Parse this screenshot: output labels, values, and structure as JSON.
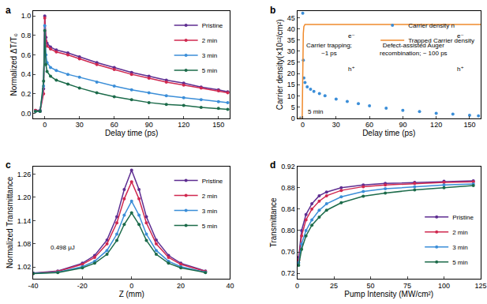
{
  "chart_data": [
    {
      "type": "scatter",
      "title": "a",
      "x_label": "Delay time (ps)",
      "y_label": "Normalized ΔT/T₀",
      "xlim": [
        -10,
        160
      ],
      "xticks": [
        0,
        30,
        60,
        90,
        120,
        150
      ],
      "ylim": [
        -0.05,
        1.05
      ],
      "yticks": [
        {
          "value": 0,
          "label": "0.0"
        },
        {
          "value": 0.2,
          "label": "0.2"
        },
        {
          "value": 0.4,
          "label": "0.4"
        },
        {
          "value": 0.6,
          "label": "0.6"
        },
        {
          "value": 0.8,
          "label": "0.8"
        },
        {
          "value": 1,
          "label": "1.0"
        }
      ],
      "legend": "top right",
      "grid": false,
      "x": [
        -8,
        -4,
        -1,
        0,
        1,
        2,
        5,
        10,
        20,
        30,
        45,
        60,
        75,
        90,
        105,
        120,
        135,
        150,
        158
      ],
      "series": [
        {
          "name": "Pristine",
          "color": "#5e2d91",
          "marker": "circle",
          "line_style": "solid",
          "values": [
            0.03,
            0.03,
            0.25,
            1.0,
            0.78,
            0.72,
            0.68,
            0.65,
            0.62,
            0.58,
            0.52,
            0.47,
            0.42,
            0.38,
            0.34,
            0.31,
            0.27,
            0.24,
            0.22
          ]
        },
        {
          "name": "2 min",
          "color": "#d0284f",
          "marker": "circle",
          "line_style": "solid",
          "values": [
            0.03,
            0.02,
            0.2,
            0.98,
            0.74,
            0.69,
            0.66,
            0.63,
            0.6,
            0.56,
            0.5,
            0.45,
            0.4,
            0.36,
            0.32,
            0.29,
            0.26,
            0.23,
            0.21
          ]
        },
        {
          "name": "3 min",
          "color": "#3b8ed8",
          "marker": "circle",
          "line_style": "solid",
          "values": [
            0.02,
            0.02,
            0.28,
            0.9,
            0.6,
            0.52,
            0.47,
            0.44,
            0.4,
            0.37,
            0.32,
            0.28,
            0.24,
            0.21,
            0.18,
            0.16,
            0.14,
            0.12,
            0.11
          ]
        },
        {
          "name": "5 min",
          "color": "#1c6b4a",
          "marker": "circle",
          "line_style": "solid",
          "values": [
            0.02,
            0.02,
            0.33,
            0.85,
            0.5,
            0.43,
            0.38,
            0.34,
            0.3,
            0.26,
            0.21,
            0.17,
            0.14,
            0.11,
            0.09,
            0.08,
            0.06,
            0.05,
            0.04
          ]
        }
      ]
    },
    {
      "type": "scatter",
      "title": "b",
      "x_label": "Delay time (ps)",
      "y_label": "Carrier density(×10¹²/cm²)",
      "xlim": [
        -5,
        160
      ],
      "xticks": [
        0,
        30,
        60,
        90,
        120,
        150
      ],
      "ylim": [
        0,
        48
      ],
      "yticks": [
        0,
        5,
        10,
        15,
        20,
        25,
        30,
        35,
        40,
        45
      ],
      "legend": "top right",
      "grid": false,
      "series": [
        {
          "name": "Carrier density n",
          "color": "#3b8ed8",
          "marker": "circle",
          "x": [
            -2,
            0,
            0.5,
            1,
            2,
            4,
            7,
            10,
            15,
            20,
            30,
            40,
            50,
            60,
            75,
            90,
            105,
            120,
            135,
            150,
            158
          ],
          "values": [
            0,
            47,
            26,
            18,
            16,
            14,
            13,
            12,
            11,
            10,
            8.5,
            7.5,
            6.5,
            5.5,
            4.5,
            3.5,
            3,
            2.2,
            1.8,
            1.3,
            1
          ]
        },
        {
          "name": "Trapped Carrier density",
          "color": "#f08a2c",
          "line_style": "solid",
          "x": [
            -5,
            -0.5,
            0.5,
            1,
            2,
            160
          ],
          "values": [
            0,
            0,
            38,
            41,
            42,
            42
          ]
        }
      ],
      "annotations": [
        {
          "text": "Carrier trapping;\n~1 ps",
          "x": 24,
          "y": 31
        },
        {
          "text": "Defect-assisted Auger\nrecombination; ~ 100 ps",
          "x": 100,
          "y": 31
        },
        {
          "text": "e⁻",
          "x": 44,
          "y": 37
        },
        {
          "text": "h⁺",
          "x": 44,
          "y": 22
        },
        {
          "text": "e⁻",
          "x": 142,
          "y": 37
        },
        {
          "text": "h⁺",
          "x": 142,
          "y": 22
        },
        {
          "text": "5 min",
          "x": 12,
          "y": 3
        }
      ]
    },
    {
      "type": "scatter",
      "title": "c",
      "x_label": "Z (mm)",
      "y_label": "Normalized Transmittance",
      "xlim": [
        -40,
        40
      ],
      "xticks": [
        -40,
        -20,
        0,
        20,
        40
      ],
      "ylim": [
        0.99,
        1.28
      ],
      "yticks": [
        1.02,
        1.08,
        1.14,
        {
          "value": 1.2,
          "label": "1.20"
        },
        1.26
      ],
      "legend": "top right",
      "grid": false,
      "x": [
        -40,
        -30,
        -20,
        -15,
        -10,
        -6,
        -3,
        0,
        3,
        6,
        10,
        15,
        20,
        30
      ],
      "series": [
        {
          "name": "Pristine",
          "color": "#5e2d91",
          "marker": "circle",
          "line_style": "solid",
          "values": [
            1.005,
            1.01,
            1.03,
            1.05,
            1.09,
            1.15,
            1.22,
            1.27,
            1.22,
            1.15,
            1.09,
            1.05,
            1.03,
            1.01
          ]
        },
        {
          "name": "2 min",
          "color": "#d0284f",
          "marker": "circle",
          "line_style": "solid",
          "values": [
            1.004,
            1.009,
            1.027,
            1.045,
            1.08,
            1.134,
            1.196,
            1.24,
            1.196,
            1.134,
            1.08,
            1.045,
            1.027,
            1.009
          ]
        },
        {
          "name": "3 min",
          "color": "#3b8ed8",
          "marker": "circle",
          "line_style": "solid",
          "values": [
            1.004,
            1.007,
            1.021,
            1.035,
            1.063,
            1.105,
            1.154,
            1.19,
            1.154,
            1.105,
            1.063,
            1.035,
            1.021,
            1.007
          ]
        },
        {
          "name": "5 min",
          "color": "#1c6b4a",
          "marker": "circle",
          "line_style": "solid",
          "values": [
            1.003,
            1.006,
            1.018,
            1.03,
            1.053,
            1.089,
            1.13,
            1.16,
            1.13,
            1.089,
            1.053,
            1.03,
            1.018,
            1.006
          ]
        }
      ],
      "annotations": [
        {
          "text": "0.498 μJ",
          "x": -28,
          "y": 1.07
        }
      ]
    },
    {
      "type": "scatter",
      "title": "d",
      "x_label": "Pump Intensity (MW/cm²)",
      "y_label": "Transmittance",
      "xlim": [
        0,
        125
      ],
      "xticks": [
        0,
        25,
        50,
        75,
        100,
        125
      ],
      "ylim": [
        0.71,
        0.92
      ],
      "yticks": [
        0.72,
        0.76,
        {
          "value": 0.8,
          "label": "0.80"
        },
        0.84,
        0.88,
        0.92
      ],
      "legend": "bottom right",
      "grid": false,
      "x": [
        1,
        3,
        6,
        10,
        15,
        20,
        30,
        45,
        60,
        80,
        100,
        120
      ],
      "series": [
        {
          "name": "Pristine",
          "color": "#5e2d91",
          "marker": "circle",
          "line_style": "solid",
          "values": [
            0.75,
            0.8,
            0.83,
            0.85,
            0.865,
            0.872,
            0.88,
            0.885,
            0.888,
            0.89,
            0.892,
            0.893
          ]
        },
        {
          "name": "2 min",
          "color": "#d0284f",
          "marker": "circle",
          "line_style": "solid",
          "values": [
            0.745,
            0.79,
            0.82,
            0.84,
            0.855,
            0.865,
            0.875,
            0.882,
            0.885,
            0.888,
            0.89,
            0.891
          ]
        },
        {
          "name": "3 min",
          "color": "#3b8ed8",
          "marker": "circle",
          "line_style": "solid",
          "values": [
            0.74,
            0.775,
            0.8,
            0.82,
            0.838,
            0.85,
            0.863,
            0.873,
            0.878,
            0.882,
            0.885,
            0.887
          ]
        },
        {
          "name": "5 min",
          "color": "#1c6b4a",
          "marker": "circle",
          "line_style": "solid",
          "values": [
            0.735,
            0.765,
            0.79,
            0.81,
            0.825,
            0.838,
            0.852,
            0.864,
            0.87,
            0.876,
            0.88,
            0.884
          ]
        }
      ]
    }
  ]
}
